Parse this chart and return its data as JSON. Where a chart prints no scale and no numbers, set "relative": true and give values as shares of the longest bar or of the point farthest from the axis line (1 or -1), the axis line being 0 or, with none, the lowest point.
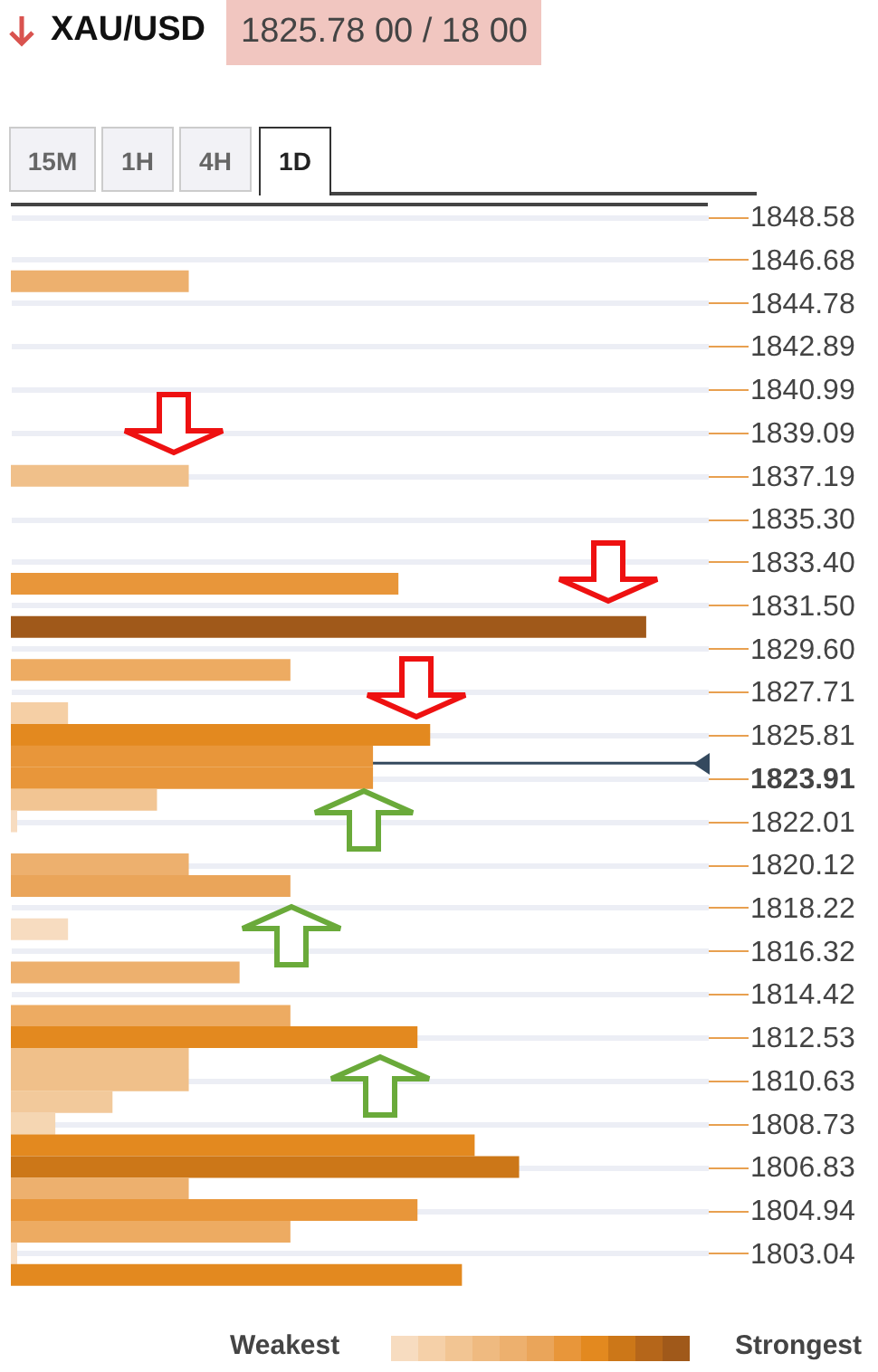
{
  "chart_data": {
    "type": "bar",
    "orientation": "horizontal",
    "relative": true,
    "title": "XAU/USD",
    "subtitle": "1825.78 00 / 18 00",
    "annotations": [
      "15M",
      "1H",
      "4H",
      "1D",
      "Weakest",
      "Strongest"
    ],
    "x": [
      1845.73,
      1837.19,
      1832.45,
      1830.55,
      1828.66,
      1826.76,
      1825.81,
      1824.86,
      1823.91,
      1822.96,
      1822.01,
      1820.12,
      1819.17,
      1817.27,
      1815.37,
      1813.47,
      1812.53,
      1811.58,
      1810.63,
      1809.68,
      1808.73,
      1807.78,
      1806.83,
      1805.88,
      1804.94,
      1803.99,
      1803.04,
      1802.09
    ],
    "values": [
      0.28,
      0.28,
      0.61,
      1,
      0.44,
      0.09,
      0.66,
      0.57,
      0.57,
      0.23,
      0.01,
      0.28,
      0.44,
      0.09,
      0.36,
      0.44,
      0.64,
      0.28,
      0.28,
      0.16,
      0.07,
      0.73,
      0.8,
      0.28,
      0.64,
      0.44,
      0.01,
      0.71
    ],
    "colors": [
      "#edb06e",
      "#f0c08a",
      "#e8963a",
      "#a0591a",
      "#edab62",
      "#f5cfa5",
      "#e3891f",
      "#e8963a",
      "#e8963a",
      "#f2c593",
      "#f7dcc0",
      "#edb06e",
      "#eaa55a",
      "#f7dcc0",
      "#edb06e",
      "#edab62",
      "#e3891f",
      "#f0c08a",
      "#f0c08a",
      "#f2c99b",
      "#f5d6b2",
      "#e3891f",
      "#cc7718",
      "#edb06e",
      "#e8963a",
      "#edab62",
      "#f7dcc0",
      "#e3891f"
    ],
    "ylim": [
      1801.8,
      1849.1
    ],
    "yticks": [
      1848.58,
      1846.68,
      1844.78,
      1842.89,
      1840.99,
      1839.09,
      1837.19,
      {
        "value": 1835.3,
        "label": "1835.30"
      },
      {
        "value": 1833.4,
        "label": "1833.40"
      },
      {
        "value": 1831.5,
        "label": "1831.50"
      },
      {
        "value": 1829.6,
        "label": "1829.60"
      },
      1827.71,
      1825.81,
      1823.91,
      1822.01,
      1820.12,
      1818.22,
      1816.32,
      1814.42,
      1812.53,
      1810.63,
      1808.73,
      1806.83,
      1804.94,
      1803.04
    ],
    "ref_lines": [
      {
        "axis": "y",
        "value": 1824.57,
        "color": "#34495e"
      }
    ],
    "grid": "y"
  }
}
